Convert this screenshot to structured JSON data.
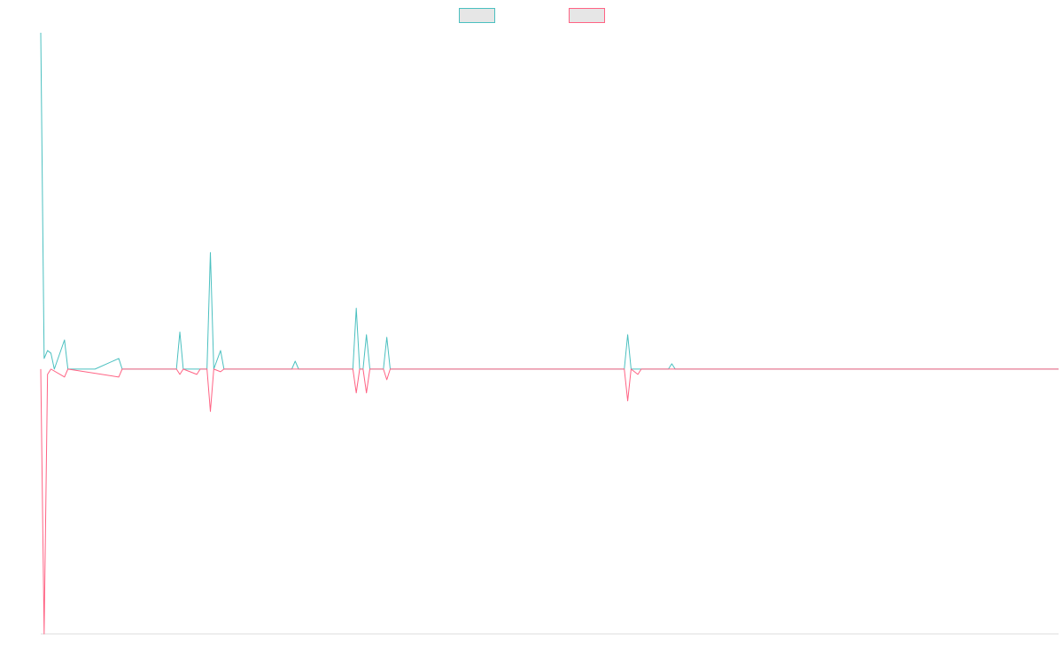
{
  "chart_data": {
    "type": "line",
    "title": "",
    "xlabel": "",
    "ylabel": "",
    "ylim": [
      -1,
      1.27
    ],
    "xlim": [
      0,
      300
    ],
    "grid": false,
    "legend_placement": "top-center",
    "series": [
      {
        "color": "#4bc0c0",
        "points": [
          [
            0,
            1.27
          ],
          [
            1,
            0.04
          ],
          [
            2,
            0.07
          ],
          [
            3,
            0.06
          ],
          [
            4,
            0.0
          ],
          [
            7,
            0.11
          ],
          [
            8,
            0.0
          ],
          [
            16,
            0.0
          ],
          [
            23,
            0.04
          ],
          [
            24,
            0.0
          ],
          [
            40,
            0.0
          ],
          [
            41,
            0.14
          ],
          [
            42,
            0.0
          ],
          [
            49,
            0.0
          ],
          [
            50,
            0.44
          ],
          [
            51,
            0.0
          ],
          [
            53,
            0.07
          ],
          [
            54,
            0.0
          ],
          [
            74,
            0.0
          ],
          [
            75,
            0.03
          ],
          [
            76,
            0.0
          ],
          [
            92,
            0.0
          ],
          [
            93,
            0.23
          ],
          [
            94,
            0.0
          ],
          [
            95,
            0.0
          ],
          [
            96,
            0.13
          ],
          [
            97,
            0.0
          ],
          [
            101,
            0.0
          ],
          [
            102,
            0.12
          ],
          [
            103,
            0.0
          ],
          [
            172,
            0.0
          ],
          [
            173,
            0.13
          ],
          [
            174,
            0.0
          ],
          [
            185,
            0.0
          ],
          [
            186,
            0.02
          ],
          [
            187,
            0.0
          ],
          [
            300,
            0.0
          ]
        ]
      },
      {
        "color": "#ff6384",
        "points": [
          [
            0,
            0.0
          ],
          [
            1,
            -1.0
          ],
          [
            2,
            -0.02
          ],
          [
            3,
            0.0
          ],
          [
            7,
            -0.03
          ],
          [
            8,
            0.0
          ],
          [
            23,
            -0.03
          ],
          [
            24,
            0.0
          ],
          [
            40,
            0.0
          ],
          [
            41,
            -0.02
          ],
          [
            42,
            0.0
          ],
          [
            46,
            -0.02
          ],
          [
            47,
            0.0
          ],
          [
            49,
            0.0
          ],
          [
            50,
            -0.16
          ],
          [
            51,
            0.0
          ],
          [
            53,
            -0.01
          ],
          [
            54,
            0.0
          ],
          [
            92,
            0.0
          ],
          [
            93,
            -0.09
          ],
          [
            94,
            0.0
          ],
          [
            95,
            0.0
          ],
          [
            96,
            -0.09
          ],
          [
            97,
            0.0
          ],
          [
            101,
            0.0
          ],
          [
            102,
            -0.04
          ],
          [
            103,
            0.0
          ],
          [
            172,
            0.0
          ],
          [
            173,
            -0.12
          ],
          [
            174,
            0.0
          ],
          [
            176,
            -0.02
          ],
          [
            177,
            0.0
          ],
          [
            300,
            0.0
          ]
        ]
      }
    ],
    "legend": [
      {
        "fill": "#e6e6e6",
        "stroke": "#4bc0c0"
      },
      {
        "fill": "#e6e6e6",
        "stroke": "#ff6384"
      }
    ],
    "colors": {
      "axis": "#dddddd",
      "background": "#ffffff"
    }
  }
}
